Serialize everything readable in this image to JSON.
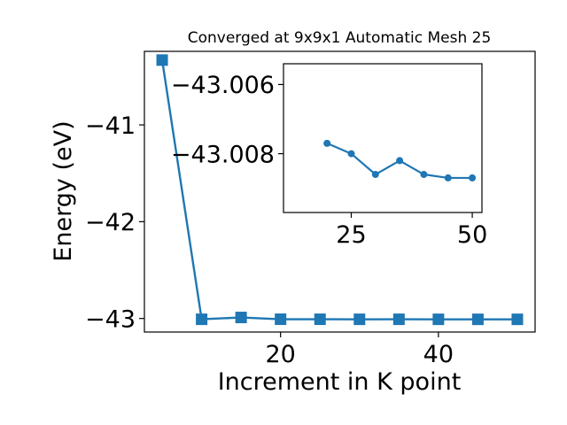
{
  "chart_data": [
    {
      "type": "line",
      "title": "Converged at 9x9x1 Automatic Mesh 25",
      "xlabel": "Increment in K point",
      "ylabel": "Energy (eV)",
      "x": [
        5,
        10,
        15,
        20,
        25,
        30,
        35,
        40,
        45,
        50
      ],
      "series": [
        {
          "values": [
            -40.33,
            -43.0083,
            -42.9895,
            -43.0077,
            -43.008,
            -43.0086,
            -43.0082,
            -43.0086,
            -43.0087,
            -43.0087
          ]
        }
      ],
      "xlim": [
        2.75,
        52.25
      ],
      "ylim": [
        -43.14,
        -40.24
      ],
      "xticks": [
        20,
        40
      ],
      "xtick_labels": [
        "20",
        "40"
      ],
      "yticks": [
        -43,
        -42,
        -41
      ],
      "ytick_labels": [
        "−43",
        "−42",
        "−41"
      ],
      "color": "#1f77b4",
      "marker": "square",
      "grid": false
    },
    {
      "type": "line",
      "role": "inset",
      "x": [
        20,
        25,
        30,
        35,
        40,
        45,
        50
      ],
      "series": [
        {
          "values": [
            -43.0077,
            -43.008,
            -43.0086,
            -43.0082,
            -43.0086,
            -43.0087,
            -43.0087
          ]
        }
      ],
      "xlim": [
        11,
        52
      ],
      "ylim": [
        -43.0097,
        -43.0054
      ],
      "xticks": [
        25,
        50
      ],
      "xtick_labels": [
        "25",
        "50"
      ],
      "yticks": [
        -43.008,
        -43.006
      ],
      "ytick_labels": [
        "−43.008",
        "−43.006"
      ],
      "color": "#1f77b4",
      "marker": "circle",
      "grid": false
    }
  ]
}
